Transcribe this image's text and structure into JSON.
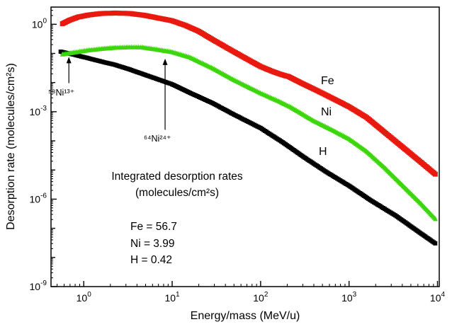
{
  "chart_data": {
    "type": "scatter",
    "title": "",
    "xlabel": "Energy/mass (MeV/u)",
    "ylabel": "Desorption rate (molecules/cm²s)",
    "x_scale": "log",
    "y_scale": "log",
    "grid": false,
    "frame_color": "#000000",
    "note": "points_log entries are [log10(x in MeV/u), log10(desorption rate in molecules/cm2s)]",
    "x_range_log": [
      -0.37,
      4.02
    ],
    "y_range_log": [
      -9,
      0.59
    ],
    "x_tick_exponents": [
      0,
      1,
      2,
      3,
      4
    ],
    "y_tick_exponents": [
      0,
      -3,
      -6,
      -9
    ],
    "series": [
      {
        "name": "H",
        "color": "#000000",
        "marker": "square",
        "marker_size": 6,
        "points_log": [
          [
            -0.26,
            -0.94
          ],
          [
            -0.1,
            -1.05
          ],
          [
            0.02,
            -1.14
          ],
          [
            0.2,
            -1.28
          ],
          [
            0.34,
            -1.38
          ],
          [
            0.52,
            -1.55
          ],
          [
            0.66,
            -1.7
          ],
          [
            0.85,
            -1.9
          ],
          [
            1.0,
            -2.06
          ],
          [
            1.2,
            -2.35
          ],
          [
            1.46,
            -2.71
          ],
          [
            1.7,
            -3.1
          ],
          [
            2.0,
            -3.56
          ],
          [
            2.25,
            -4.05
          ],
          [
            2.5,
            -4.58
          ],
          [
            2.75,
            -5.08
          ],
          [
            3.0,
            -5.54
          ],
          [
            3.25,
            -6.05
          ],
          [
            3.54,
            -6.59
          ],
          [
            3.8,
            -7.15
          ],
          [
            3.99,
            -7.55
          ]
        ]
      },
      {
        "name": "Ni",
        "color": "#3dd60d",
        "marker": "triangle",
        "marker_size": 7,
        "points_log": [
          [
            -0.24,
            -1.02
          ],
          [
            -0.1,
            -0.95
          ],
          [
            0.05,
            -0.88
          ],
          [
            0.2,
            -0.83
          ],
          [
            0.36,
            -0.79
          ],
          [
            0.52,
            -0.775
          ],
          [
            0.66,
            -0.78
          ],
          [
            0.82,
            -0.85
          ],
          [
            1.0,
            -0.94
          ],
          [
            1.2,
            -1.12
          ],
          [
            1.46,
            -1.5
          ],
          [
            1.7,
            -1.9
          ],
          [
            2.0,
            -2.35
          ],
          [
            2.2,
            -2.62
          ],
          [
            2.34,
            -2.83
          ],
          [
            2.6,
            -3.3
          ],
          [
            2.8,
            -3.6
          ],
          [
            3.0,
            -3.92
          ],
          [
            3.2,
            -4.35
          ],
          [
            3.4,
            -4.9
          ],
          [
            3.6,
            -5.5
          ],
          [
            3.8,
            -6.1
          ],
          [
            3.99,
            -6.71
          ]
        ]
      },
      {
        "name": "Fe",
        "color": "#e8190f",
        "marker": "square",
        "marker_size": 7,
        "points_log": [
          [
            -0.24,
            0.02
          ],
          [
            -0.16,
            0.14
          ],
          [
            -0.06,
            0.25
          ],
          [
            0.06,
            0.32
          ],
          [
            0.2,
            0.37
          ],
          [
            0.36,
            0.385
          ],
          [
            0.52,
            0.37
          ],
          [
            0.68,
            0.31
          ],
          [
            0.85,
            0.21
          ],
          [
            1.0,
            0.12
          ],
          [
            1.15,
            -0.04
          ],
          [
            1.3,
            -0.24
          ],
          [
            1.46,
            -0.53
          ],
          [
            1.65,
            -0.86
          ],
          [
            1.85,
            -1.2
          ],
          [
            2.0,
            -1.45
          ],
          [
            2.12,
            -1.6
          ],
          [
            2.22,
            -1.71
          ],
          [
            2.32,
            -1.8
          ],
          [
            2.45,
            -2.0
          ],
          [
            2.6,
            -2.22
          ],
          [
            2.8,
            -2.52
          ],
          [
            3.0,
            -2.83
          ],
          [
            3.2,
            -3.2
          ],
          [
            3.4,
            -3.7
          ],
          [
            3.6,
            -4.2
          ],
          [
            3.8,
            -4.7
          ],
          [
            3.99,
            -5.18
          ]
        ]
      }
    ],
    "annotations": [
      {
        "text": "⁵⁸Ni¹³⁺",
        "arrow": {
          "x_log": -0.168,
          "y_from_log": -2.02,
          "y_to_log": -1.12
        }
      },
      {
        "text": "⁶⁴Ni²⁴⁺",
        "arrow": {
          "x_log": 0.92,
          "y_from_log": -3.62,
          "y_to_log": -1.18
        }
      }
    ],
    "inset_text": {
      "line1": "Integrated desorption rates",
      "line2": "(molecules/cm²s)",
      "values": [
        "Fe = 56.7",
        "Ni = 3.99",
        "H = 0.42"
      ]
    },
    "integrated_rates": {
      "Fe": 56.7,
      "Ni": 3.99,
      "H": 0.42
    }
  }
}
